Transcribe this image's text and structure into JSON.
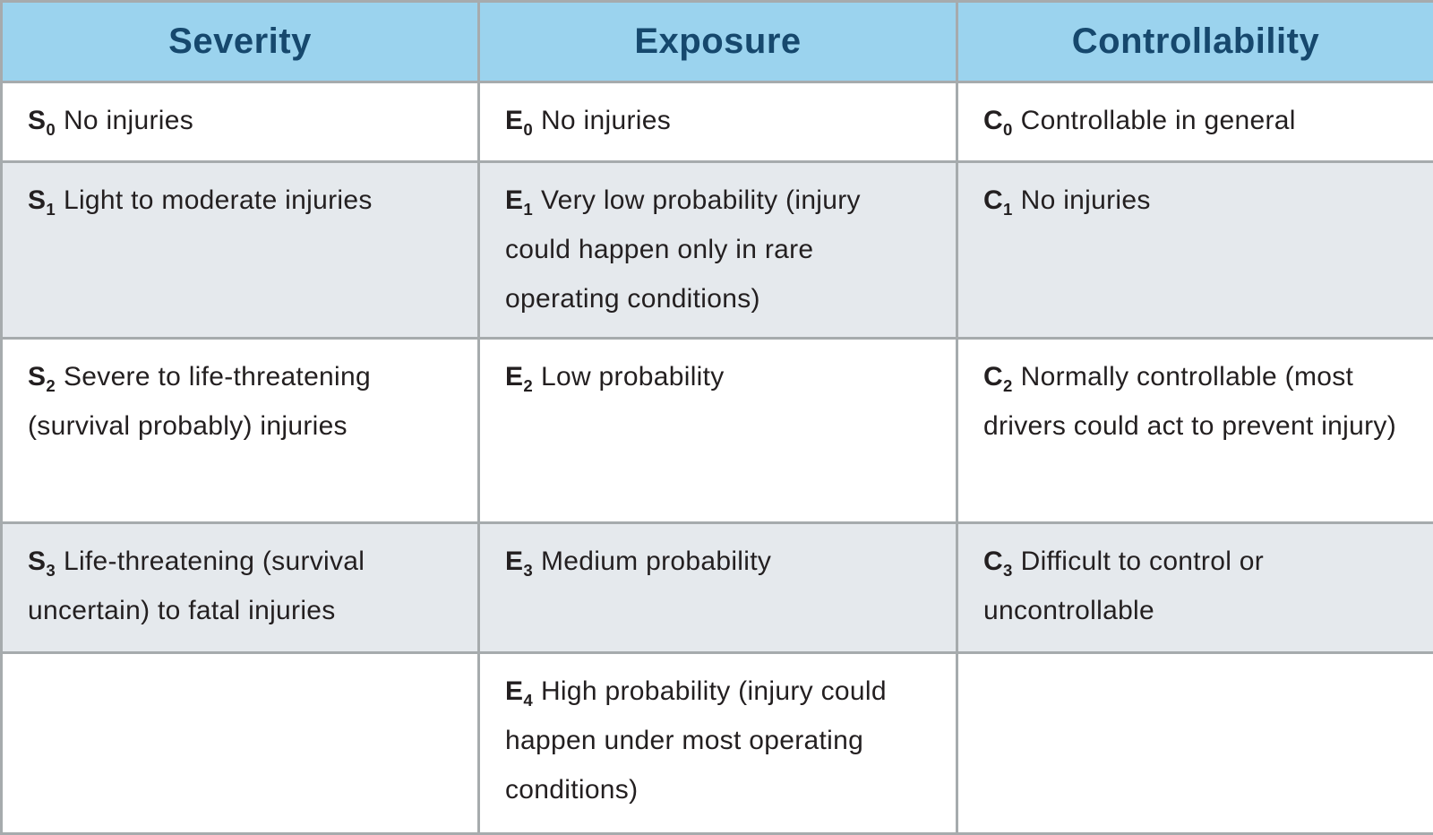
{
  "colors": {
    "header_bg": "#9bd3ee",
    "header_text": "#16486d",
    "row_alt_bg": "#e5e9ed",
    "row_bg": "#ffffff",
    "border": "#a6abad",
    "body_text": "#231f20"
  },
  "chart_data": {
    "type": "table",
    "columns": [
      "Severity",
      "Exposure",
      "Controllability"
    ],
    "rows": [
      [
        {
          "code": "S",
          "sub": "0",
          "text": "No injuries"
        },
        {
          "code": "E",
          "sub": "0",
          "text": "No injuries"
        },
        {
          "code": "C",
          "sub": "0",
          "text": "Controllable in general"
        }
      ],
      [
        {
          "code": "S",
          "sub": "1",
          "text": "Light to moderate injuries"
        },
        {
          "code": "E",
          "sub": "1",
          "text": "Very low probability (injury could happen only in rare operating conditions)"
        },
        {
          "code": "C",
          "sub": "1",
          "text": "No injuries"
        }
      ],
      [
        {
          "code": "S",
          "sub": "2",
          "text": "Severe to life-threatening (survival probably) injuries"
        },
        {
          "code": "E",
          "sub": "2",
          "text": "Low probability"
        },
        {
          "code": "C",
          "sub": "2",
          "text": "Normally controllable (most drivers could act to prevent injury)"
        }
      ],
      [
        {
          "code": "S",
          "sub": "3",
          "text": "Life-threatening (survival uncertain) to fatal injuries"
        },
        {
          "code": "E",
          "sub": "3",
          "text": "Medium probability"
        },
        {
          "code": "C",
          "sub": "3",
          "text": "Difficult to control or uncontrollable"
        }
      ],
      [
        {
          "code": "",
          "sub": "",
          "text": ""
        },
        {
          "code": "E",
          "sub": "4",
          "text": "High probability (injury could happen under most operating conditions)"
        },
        {
          "code": "",
          "sub": "",
          "text": ""
        }
      ]
    ]
  }
}
